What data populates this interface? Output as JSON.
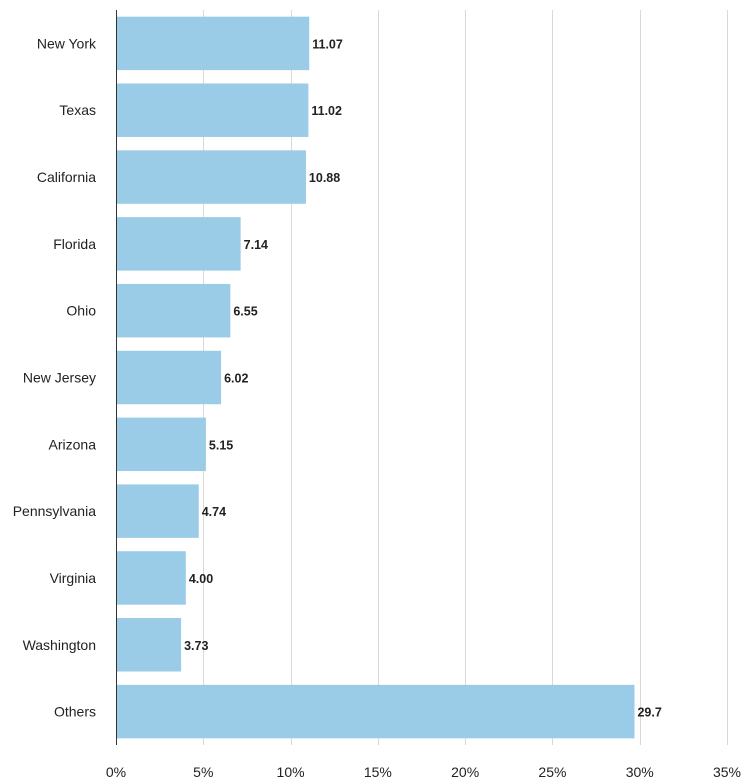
{
  "chart_data": {
    "type": "bar",
    "orientation": "horizontal",
    "categories": [
      "New York",
      "Texas",
      "California",
      "Florida",
      "Ohio",
      "New Jersey",
      "Arizona",
      "Pennsylvania",
      "Virginia",
      "Washington",
      "Others"
    ],
    "values": [
      11.07,
      11.02,
      10.88,
      7.14,
      6.55,
      6.02,
      5.15,
      4.74,
      4.0,
      3.73,
      29.7
    ],
    "value_labels": [
      "11.07",
      "11.02",
      "10.88",
      "7.14",
      "6.55",
      "6.02",
      "5.15",
      "4.74",
      "4.00",
      "3.73",
      "29.7"
    ],
    "x_ticks": [
      0,
      5,
      10,
      15,
      20,
      25,
      30,
      35
    ],
    "x_tick_labels": [
      "0%",
      "5%",
      "10%",
      "15%",
      "20%",
      "25%",
      "30%",
      "35%"
    ],
    "xlim": [
      0,
      35
    ],
    "grid": true,
    "bar_color": "#9ACBE7",
    "title": "",
    "xlabel": "",
    "ylabel": ""
  }
}
